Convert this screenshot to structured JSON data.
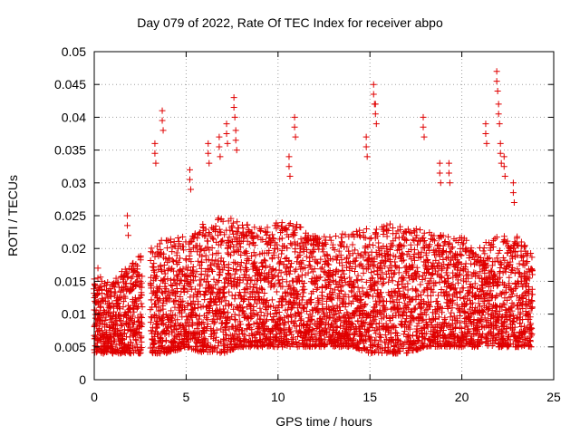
{
  "chart_data": {
    "type": "scatter",
    "title": "Day 079 of 2022, Rate Of TEC Index for receiver abpo",
    "xlabel": "GPS time / hours",
    "ylabel": "ROTI / TECUs",
    "xlim": [
      0,
      25
    ],
    "ylim": [
      0,
      0.05
    ],
    "x_ticks": [
      "0",
      "5",
      "10",
      "15",
      "20",
      "25"
    ],
    "y_ticks": [
      "0",
      "0.005",
      "0.01",
      "0.015",
      "0.02",
      "0.025",
      "0.03",
      "0.035",
      "0.04",
      "0.045",
      "0.05"
    ],
    "grid": true,
    "marker": "+",
    "color": "#e00000",
    "x_step_hours": 0.0833,
    "data_gaps_hours": [
      [
        2.6,
        3.0
      ]
    ],
    "envelope": {
      "x_hours": [
        0,
        1,
        2,
        3,
        4,
        5,
        6,
        7,
        8,
        9,
        10,
        11,
        12,
        13,
        14,
        15,
        16,
        17,
        18,
        19,
        20,
        21,
        22,
        23,
        24
      ],
      "typical_min": [
        0.004,
        0.004,
        0.004,
        0.004,
        0.004,
        0.005,
        0.004,
        0.004,
        0.005,
        0.005,
        0.005,
        0.005,
        0.005,
        0.005,
        0.005,
        0.004,
        0.004,
        0.004,
        0.005,
        0.005,
        0.005,
        0.005,
        0.005,
        0.005,
        0.005
      ],
      "typical_max": [
        0.016,
        0.015,
        0.018,
        0.02,
        0.022,
        0.022,
        0.024,
        0.025,
        0.024,
        0.023,
        0.024,
        0.024,
        0.022,
        0.022,
        0.023,
        0.023,
        0.024,
        0.023,
        0.023,
        0.022,
        0.022,
        0.021,
        0.022,
        0.022,
        0.02
      ]
    },
    "notable_points": [
      {
        "x": 0.2,
        "y": 0.017
      },
      {
        "x": 1.8,
        "y": 0.025
      },
      {
        "x": 3.3,
        "y": 0.036
      },
      {
        "x": 3.7,
        "y": 0.041
      },
      {
        "x": 5.2,
        "y": 0.032
      },
      {
        "x": 6.2,
        "y": 0.036
      },
      {
        "x": 6.8,
        "y": 0.037
      },
      {
        "x": 7.2,
        "y": 0.039
      },
      {
        "x": 7.6,
        "y": 0.043
      },
      {
        "x": 7.7,
        "y": 0.038
      },
      {
        "x": 10.6,
        "y": 0.034
      },
      {
        "x": 10.9,
        "y": 0.04
      },
      {
        "x": 14.8,
        "y": 0.037
      },
      {
        "x": 15.2,
        "y": 0.045
      },
      {
        "x": 15.3,
        "y": 0.042
      },
      {
        "x": 17.9,
        "y": 0.04
      },
      {
        "x": 18.8,
        "y": 0.033
      },
      {
        "x": 19.3,
        "y": 0.033
      },
      {
        "x": 21.3,
        "y": 0.039
      },
      {
        "x": 21.9,
        "y": 0.047
      },
      {
        "x": 22.0,
        "y": 0.042
      },
      {
        "x": 22.1,
        "y": 0.036
      },
      {
        "x": 22.3,
        "y": 0.034
      },
      {
        "x": 22.8,
        "y": 0.03
      }
    ]
  }
}
